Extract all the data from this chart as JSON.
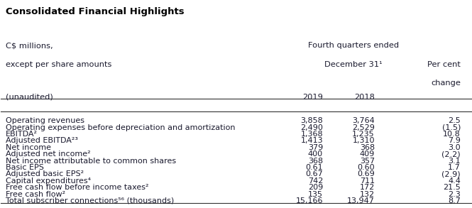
{
  "title": "Consolidated Financial Highlights",
  "header_left1": "C$ millions,",
  "header_left2": "except per share amounts",
  "col_year1": "2019",
  "col_year2": "2018",
  "col_unaudited": "(unaudited)",
  "rows": [
    [
      "Operating revenues",
      "3,858",
      "3,764",
      "2.5"
    ],
    [
      "Operating expenses before depreciation and amortization",
      "2,490",
      "2,529",
      "(1.5)"
    ],
    [
      "EBITDA²",
      "1,368",
      "1,235",
      "10.8"
    ],
    [
      "Adjusted EBITDA²³",
      "1,413",
      "1,310",
      "7.9"
    ],
    [
      "Net income",
      "379",
      "368",
      "3.0"
    ],
    [
      "Adjusted net income²",
      "400",
      "409",
      "(2.2)"
    ],
    [
      "Net income attributable to common shares",
      "368",
      "357",
      "3.1"
    ],
    [
      "Basic EPS",
      "0.61",
      "0.60",
      "1.7"
    ],
    [
      "Adjusted basic EPS²",
      "0.67",
      "0.69",
      "(2.9)"
    ],
    [
      "Capital expenditures⁴",
      "742",
      "711",
      "4.4"
    ],
    [
      "Free cash flow before income taxes²",
      "209",
      "172",
      "21.5"
    ],
    [
      "Free cash flow²",
      "135",
      "132",
      "2.3"
    ],
    [
      "Total subscriber connections⁵⁶ (thousands)",
      "15,166",
      "13,947",
      "8.7"
    ]
  ],
  "bg_color": "#ffffff",
  "title_color": "#000000",
  "text_color": "#1a1a2e",
  "line_color": "#333333",
  "title_fontsize": 9.5,
  "header_fontsize": 8.2,
  "row_fontsize": 8.0
}
